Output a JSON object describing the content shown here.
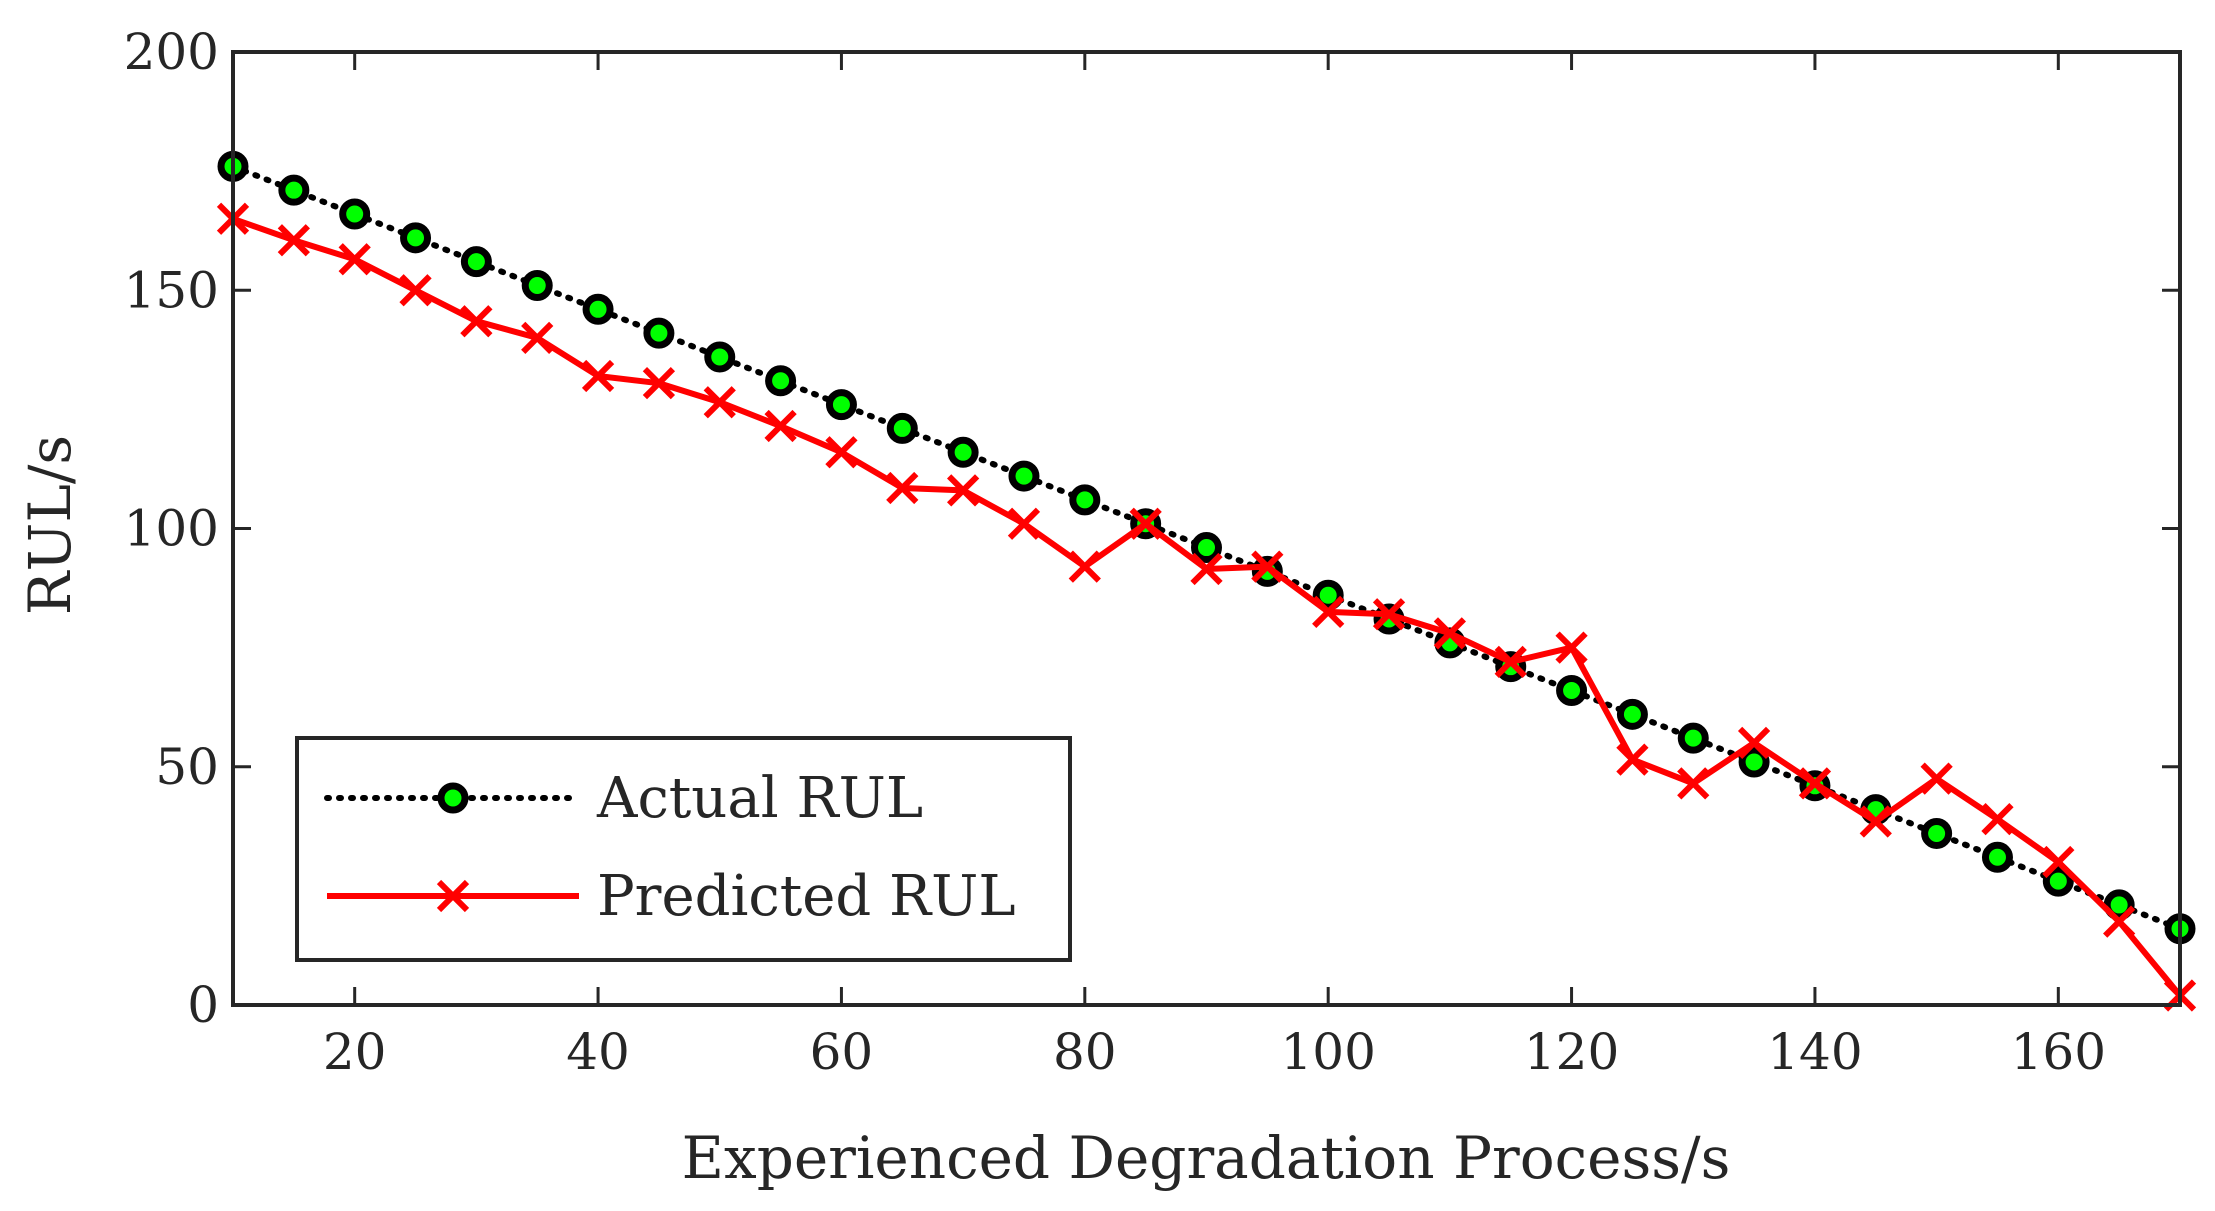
{
  "chart_data": {
    "type": "line",
    "xlabel": "Experienced Degradation Process/s",
    "ylabel": "RUL/s",
    "xlim": [
      10,
      170
    ],
    "ylim": [
      0,
      200
    ],
    "xticks": [
      20,
      40,
      60,
      80,
      100,
      120,
      140,
      160
    ],
    "yticks": [
      0,
      50,
      100,
      150,
      200
    ],
    "grid": false,
    "legend_position": "bottom-left",
    "series": [
      {
        "name": "Actual RUL",
        "line_style": "dotted",
        "line_color": "#000000",
        "marker": "circle",
        "marker_fill": "#00ff00",
        "marker_edge": "#000000",
        "x": [
          10,
          15,
          20,
          25,
          30,
          35,
          40,
          45,
          50,
          55,
          60,
          65,
          70,
          75,
          80,
          85,
          90,
          95,
          100,
          105,
          110,
          115,
          120,
          125,
          130,
          135,
          140,
          145,
          150,
          155,
          160,
          165,
          170
        ],
        "values": [
          176,
          171,
          166,
          161,
          156,
          151,
          146,
          141,
          136,
          131,
          126,
          121,
          116,
          111,
          106,
          101,
          96,
          91,
          86,
          81,
          76,
          71,
          66,
          61,
          56,
          51,
          46,
          41,
          36,
          31,
          26,
          21,
          16
        ]
      },
      {
        "name": "Predicted RUL",
        "line_style": "solid",
        "line_color": "#ff0000",
        "marker": "x",
        "x": [
          10,
          15,
          20,
          25,
          30,
          35,
          40,
          45,
          50,
          55,
          60,
          65,
          70,
          75,
          80,
          85,
          90,
          95,
          100,
          105,
          110,
          115,
          120,
          125,
          130,
          135,
          140,
          145,
          150,
          155,
          160,
          165,
          170
        ],
        "values": [
          165,
          160.5,
          156.5,
          150,
          143.5,
          140,
          132,
          130.5,
          126.5,
          121.5,
          116,
          108.5,
          108,
          101,
          92,
          101,
          91.5,
          92,
          82.5,
          82,
          78,
          72,
          75,
          51.5,
          46.5,
          55,
          46.5,
          38.5,
          47.5,
          39,
          30,
          17.5,
          2
        ]
      }
    ]
  }
}
